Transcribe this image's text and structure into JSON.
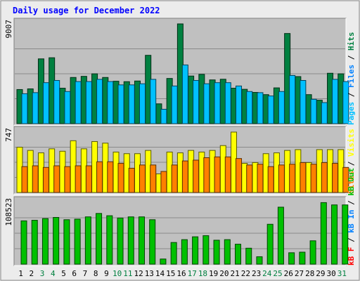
{
  "chart_data": {
    "type": "bar",
    "title": "Daily usage for December 2022",
    "categories": [
      "1",
      "2",
      "3",
      "4",
      "5",
      "6",
      "7",
      "8",
      "9",
      "10",
      "11",
      "12",
      "13",
      "14",
      "15",
      "16",
      "17",
      "18",
      "19",
      "20",
      "21",
      "22",
      "23",
      "24",
      "25",
      "26",
      "27",
      "28",
      "29",
      "30",
      "31"
    ],
    "weekend_days": [
      "3",
      "4",
      "10",
      "11",
      "17",
      "18",
      "24",
      "25",
      "31"
    ],
    "panels": [
      {
        "id": "hits-files-pages",
        "ymax_label": "9007",
        "ymax": 9007,
        "legend": [
          "Pages",
          "Files",
          "Hits"
        ],
        "series": [
          {
            "name": "Hits",
            "color": "#008040",
            "values": [
              3080,
              3140,
              5850,
              5950,
              3200,
              4170,
              4270,
              4500,
              4170,
              3830,
              3790,
              3850,
              6170,
              1790,
              4080,
              9007,
              4300,
              4450,
              3950,
              4010,
              3200,
              3100,
              2820,
              2620,
              3230,
              8140,
              4250,
              2620,
              2120,
              4550,
              4500
            ]
          },
          {
            "name": "Files",
            "color": "#0080ff",
            "values": [
              2700,
              2800,
              3700,
              3900,
              2900,
              3800,
              3800,
              4000,
              3800,
              3500,
              3500,
              3600,
              4000,
              1300,
              3400,
              5300,
              3900,
              3600,
              3700,
              3700,
              3400,
              2900,
              2800,
              2500,
              2900,
              4350,
              3900,
              2200,
              1900,
              4000,
              3800
            ]
          },
          {
            "name": "Pages",
            "color": "#00c0ff",
            "values": [
              2700,
              2800,
              3700,
              3900,
              2900,
              3800,
              3800,
              4000,
              3800,
              3500,
              3500,
              3600,
              4000,
              1300,
              3400,
              5300,
              3900,
              3600,
              3700,
              3700,
              3400,
              2900,
              2800,
              2500,
              2900,
              4350,
              3900,
              2200,
              1900,
              4000,
              3800
            ]
          }
        ]
      },
      {
        "id": "visits-sites",
        "ymax_label": "747",
        "ymax": 747,
        "legend": [
          "Sites",
          "Visits"
        ],
        "series": [
          {
            "name": "Visits",
            "color": "#ffff00",
            "values": [
              560,
              520,
              490,
              540,
              510,
              640,
              540,
              630,
              610,
              500,
              480,
              480,
              520,
              230,
              500,
              490,
              520,
              500,
              520,
              580,
              747,
              360,
              370,
              480,
              490,
              520,
              530,
              370,
              530,
              530,
              530
            ]
          },
          {
            "name": "Sites",
            "color": "#ff8000",
            "values": [
              320,
              330,
              310,
              330,
              320,
              330,
              330,
              380,
              380,
              360,
              300,
              340,
              340,
              260,
              340,
              390,
              400,
              430,
              440,
              440,
              420,
              340,
              350,
              320,
              340,
              350,
              370,
              350,
              370,
              360,
              310
            ]
          }
        ]
      },
      {
        "id": "kbytes",
        "ymax_label": "108523",
        "ymax": 108523,
        "legend": [
          "kB F",
          "kB In",
          "kB Out"
        ],
        "series": [
          {
            "name": "kB F",
            "color": "#ff0000",
            "values": [
              0,
              0,
              0,
              0,
              0,
              0,
              0,
              0,
              0,
              0,
              0,
              0,
              0,
              0,
              0,
              0,
              0,
              0,
              0,
              0,
              0,
              0,
              0,
              0,
              0,
              0,
              0,
              0,
              0,
              0,
              0
            ]
          },
          {
            "name": "kB In",
            "color": "#ff0000",
            "values": [
              0,
              0,
              0,
              0,
              0,
              0,
              0,
              0,
              0,
              0,
              0,
              0,
              0,
              0,
              0,
              0,
              0,
              0,
              0,
              0,
              0,
              0,
              0,
              0,
              0,
              0,
              0,
              0,
              0,
              0,
              0
            ]
          },
          {
            "name": "kB Out",
            "color": "#00c000",
            "values": [
              76000,
              77000,
              80000,
              82000,
              78000,
              79000,
              83000,
              89000,
              85000,
              81000,
              83000,
              83000,
              78000,
              9000,
              38000,
              43000,
              48000,
              50000,
              42000,
              43000,
              35000,
              28000,
              13000,
              70000,
              100000,
              20000,
              21000,
              41000,
              108000,
              104000,
              104000
            ]
          }
        ]
      }
    ],
    "colors": {
      "title": "#0000ff",
      "background": "#ececec",
      "plot_area": "#c0c0c0",
      "weekend_label": "#008040",
      "weekday_label": "#000000"
    }
  }
}
